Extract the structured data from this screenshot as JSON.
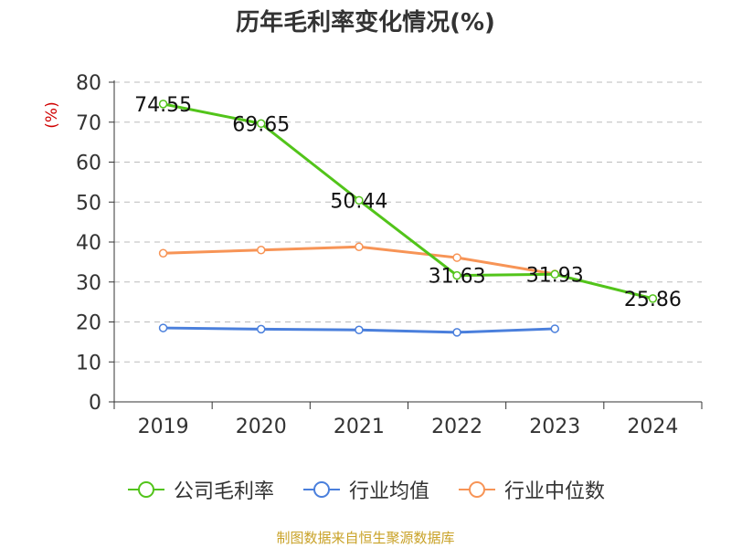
{
  "title": "历年毛利率变化情况(%)",
  "source": "制图数据来自恒生聚源数据库",
  "colors": {
    "company": "#52c41a",
    "industry_avg": "#4a7fdc",
    "industry_median": "#f79456",
    "grid": "#bbbbbb",
    "axis": "#333333",
    "unit": "#d00000"
  },
  "chart_data": {
    "type": "line",
    "title": "历年毛利率变化情况(%)",
    "ylabel": "(%)",
    "xlabel": "",
    "categories": [
      "2019",
      "2020",
      "2021",
      "2022",
      "2023",
      "2024"
    ],
    "y_ticks": [
      "0",
      "10",
      "20",
      "30",
      "40",
      "50",
      "60",
      "70",
      "80"
    ],
    "ylim": [
      0,
      80
    ],
    "grid": true,
    "legend_position": "bottom",
    "series": [
      {
        "name": "公司毛利率",
        "values": [
          74.55,
          69.65,
          50.44,
          31.63,
          31.93,
          25.86
        ],
        "labels": [
          "74.55",
          "69.65",
          "50.44",
          "31.63",
          "31.93",
          "25.86"
        ]
      },
      {
        "name": "行业均值",
        "values": [
          18.5,
          18.2,
          18.0,
          17.4,
          18.3,
          null
        ]
      },
      {
        "name": "行业中位数",
        "values": [
          37.2,
          38.0,
          38.8,
          36.1,
          32.0,
          null
        ]
      }
    ]
  }
}
